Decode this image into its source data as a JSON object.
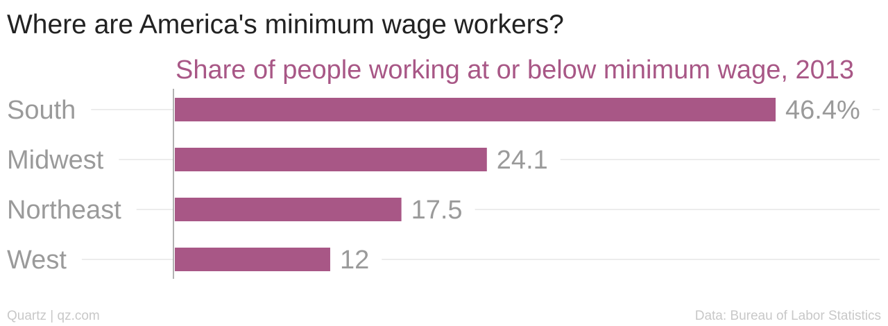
{
  "headline": "Where are America's minimum wage workers?",
  "footer": {
    "source_left": "Quartz | qz.com",
    "source_right": "Data: Bureau of Labor Statistics"
  },
  "colors": {
    "bar": "#a85786",
    "subtitle": "#a85786",
    "gridline": "#e6e6e6",
    "axis": "#999999"
  },
  "chart_data": {
    "type": "bar",
    "orientation": "horizontal",
    "title": "Share of people working at or below minimum wage, 2013",
    "categories": [
      "South",
      "Midwest",
      "Northeast",
      "West"
    ],
    "values": [
      46.4,
      24.1,
      17.5,
      12
    ],
    "value_labels": [
      "46.4%",
      "24.1",
      "17.5",
      "12"
    ],
    "xlim": [
      0,
      60
    ],
    "grid": true,
    "legend": "none"
  }
}
